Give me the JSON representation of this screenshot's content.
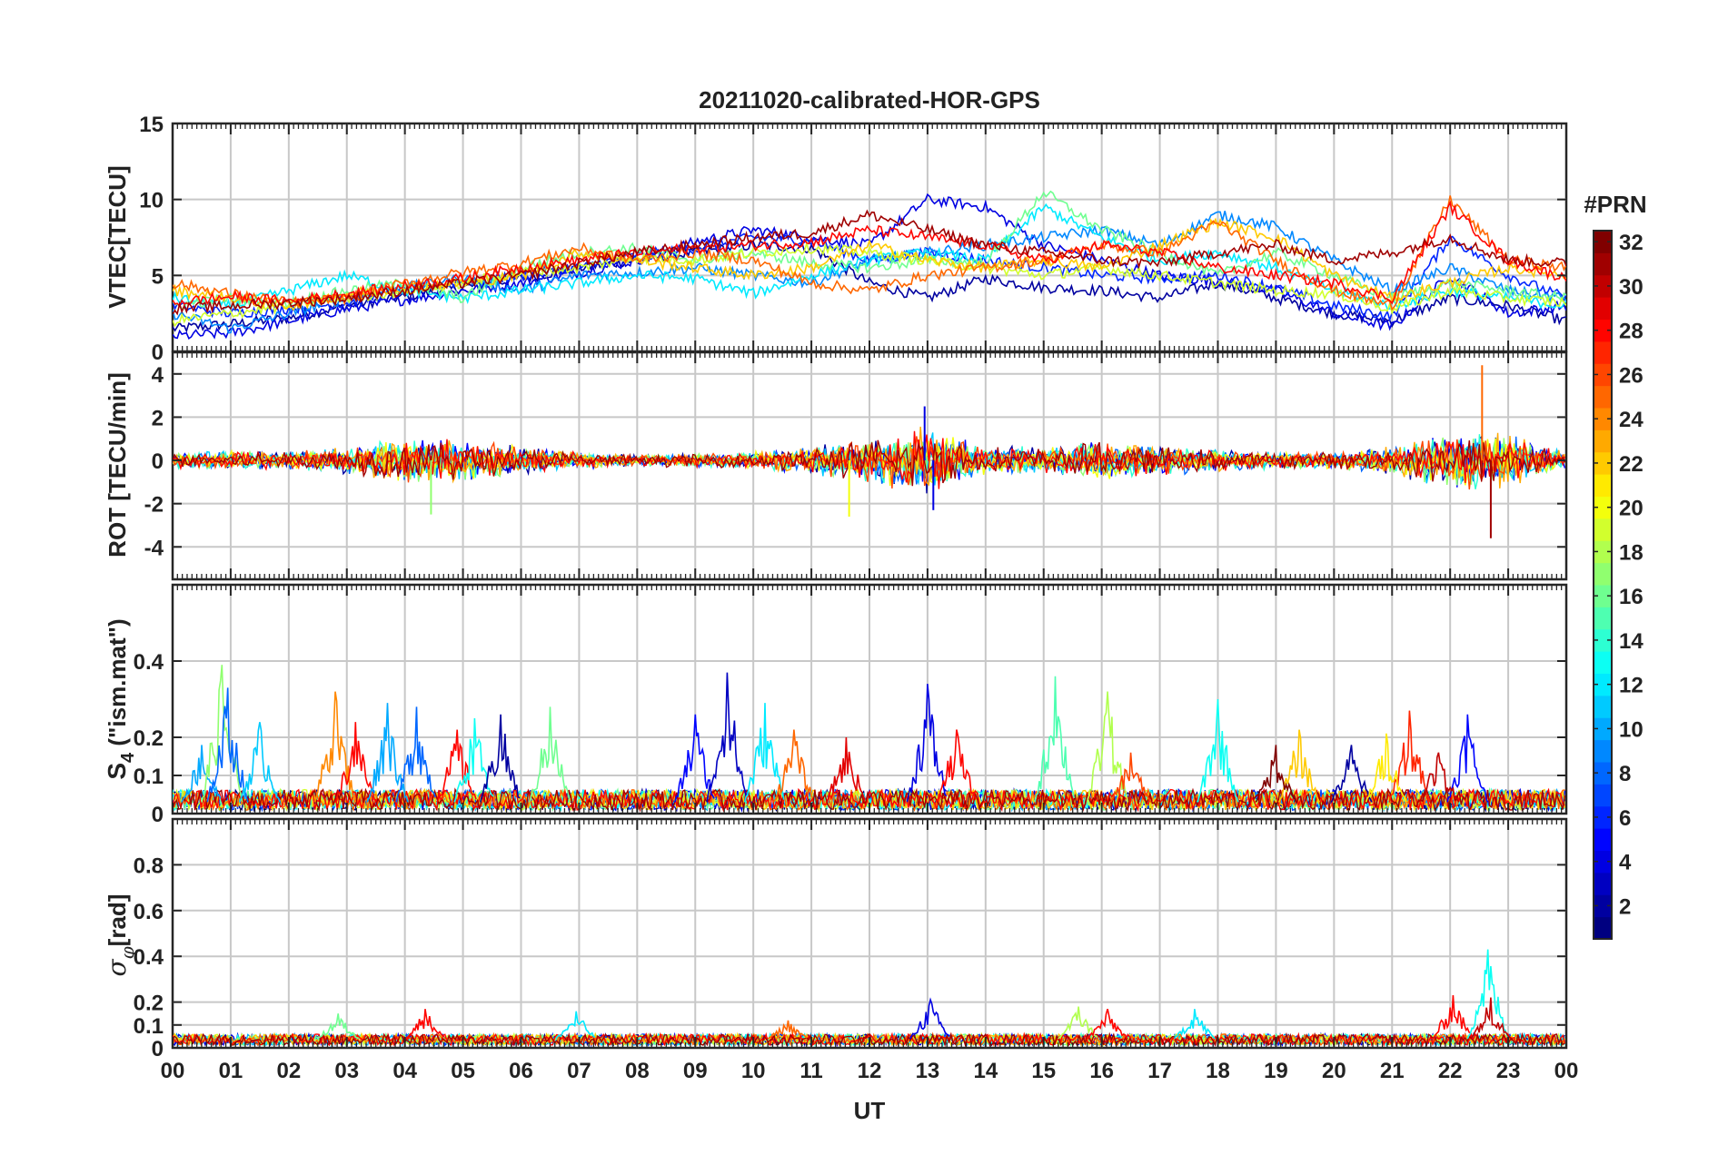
{
  "chart_data": {
    "type": "line",
    "title": "20211020-calibrated-HOR-GPS",
    "xlabel": "UT",
    "x_range": [
      0,
      24
    ],
    "x_ticks": [
      "00",
      "01",
      "02",
      "03",
      "04",
      "05",
      "06",
      "07",
      "08",
      "09",
      "10",
      "11",
      "12",
      "13",
      "14",
      "15",
      "16",
      "17",
      "18",
      "19",
      "20",
      "21",
      "22",
      "23",
      "00"
    ],
    "colorbar": {
      "label": "#PRN",
      "range": [
        1,
        32
      ],
      "ticks": [
        "2",
        "4",
        "6",
        "8",
        "10",
        "12",
        "14",
        "16",
        "18",
        "20",
        "22",
        "24",
        "26",
        "28",
        "30",
        "32"
      ],
      "colormap": "jet"
    },
    "panels": [
      {
        "name": "vtec",
        "ylabel": "VTEC[TECU]",
        "ylim": [
          0,
          15
        ],
        "yticks": [
          "0",
          "5",
          "10",
          "15"
        ],
        "tick_values": [
          0,
          5,
          10,
          15
        ],
        "series": [
          {
            "prn": 2,
            "x": [
              0,
              1,
              2,
              3,
              4,
              5,
              6,
              7,
              8,
              9,
              10,
              11,
              12,
              13,
              14,
              15,
              16,
              17,
              18,
              19,
              20,
              21,
              22,
              23,
              24
            ],
            "y": [
              1.5,
              1.8,
              2.2,
              3.0,
              3.6,
              4.2,
              4.8,
              5.5,
              6.0,
              6.5,
              7.0,
              6.8,
              4.5,
              3.5,
              4.8,
              4.2,
              4.0,
              3.5,
              4.5,
              3.5,
              2.5,
              2.0,
              3.5,
              3.0,
              2.0
            ]
          },
          {
            "prn": 4,
            "x": [
              0,
              1,
              2,
              3,
              4,
              5,
              6,
              7,
              8,
              9,
              10,
              11,
              12,
              13,
              14,
              15,
              16,
              17,
              18,
              19,
              20,
              21,
              22,
              23,
              24
            ],
            "y": [
              1.0,
              1.2,
              2.0,
              2.8,
              3.4,
              4.0,
              4.5,
              5.2,
              6.0,
              7.2,
              8.0,
              7.5,
              7.0,
              10.0,
              9.5,
              7.0,
              6.0,
              5.0,
              4.6,
              4.0,
              2.5,
              1.6,
              5.0,
              2.5,
              3.0
            ]
          },
          {
            "prn": 6,
            "x": [
              0,
              1,
              2,
              3,
              4,
              5,
              6,
              7,
              8,
              9,
              10,
              11,
              12,
              13,
              14,
              15,
              16,
              17,
              18,
              19,
              20,
              21,
              22,
              23,
              24
            ],
            "y": [
              3.0,
              2.5,
              2.8,
              3.2,
              4.0,
              4.6,
              5.0,
              5.5,
              6.3,
              6.8,
              7.5,
              7.3,
              6.0,
              6.5,
              6.0,
              5.5,
              5.0,
              4.8,
              5.0,
              4.2,
              3.0,
              2.3,
              7.5,
              5.0,
              3.5
            ]
          },
          {
            "prn": 9,
            "x": [
              0,
              1,
              2,
              3,
              4,
              5,
              6,
              7,
              8,
              9,
              10,
              11,
              12,
              13,
              14,
              15,
              16,
              17,
              18,
              19,
              20,
              21,
              22,
              23,
              24
            ],
            "y": [
              2.5,
              1.5,
              2.5,
              3.5,
              4.2,
              4.8,
              4.0,
              5.0,
              5.2,
              5.5,
              5.0,
              4.5,
              6.0,
              6.5,
              7.0,
              7.5,
              8.0,
              7.0,
              9.0,
              8.2,
              6.0,
              4.0,
              5.5,
              4.0,
              3.5
            ]
          },
          {
            "prn": 12,
            "x": [
              0,
              1,
              2,
              3,
              4,
              5,
              6,
              7,
              8,
              9,
              10,
              11,
              12,
              13,
              14,
              15,
              16,
              17,
              18,
              19,
              20,
              21,
              22,
              23,
              24
            ],
            "y": [
              3.5,
              3.0,
              4.0,
              5.0,
              4.0,
              3.5,
              4.0,
              4.5,
              5.0,
              4.8,
              3.8,
              5.0,
              6.0,
              6.5,
              6.0,
              9.5,
              7.5,
              6.0,
              6.5,
              5.5,
              4.0,
              3.0,
              4.0,
              3.5,
              3.0
            ]
          },
          {
            "prn": 16,
            "x": [
              0,
              1,
              2,
              3,
              4,
              5,
              6,
              7,
              8,
              9,
              10,
              11,
              12,
              13,
              14,
              15,
              16,
              17,
              18,
              19,
              20,
              21,
              22,
              23,
              24
            ],
            "y": [
              3.0,
              3.5,
              3.2,
              4.0,
              4.5,
              3.5,
              5.5,
              6.5,
              6.8,
              6.0,
              6.5,
              5.8,
              5.5,
              6.0,
              5.8,
              10.5,
              8.0,
              6.5,
              5.0,
              6.5,
              5.0,
              3.5,
              4.5,
              4.0,
              3.5
            ]
          },
          {
            "prn": 19,
            "x": [
              0,
              1,
              2,
              3,
              4,
              5,
              6,
              7,
              8,
              9,
              10,
              11,
              12,
              13,
              14,
              15,
              16,
              17,
              18,
              19,
              20,
              21,
              22,
              23,
              24
            ],
            "y": [
              2.0,
              2.5,
              3.0,
              3.5,
              4.0,
              4.5,
              5.2,
              5.5,
              6.2,
              6.0,
              6.5,
              6.8,
              6.5,
              6.0,
              5.5,
              5.0,
              5.5,
              5.0,
              4.5,
              4.0,
              3.8,
              2.8,
              4.0,
              3.5,
              3.2
            ]
          },
          {
            "prn": 22,
            "x": [
              0,
              1,
              2,
              3,
              4,
              5,
              6,
              7,
              8,
              9,
              10,
              11,
              12,
              13,
              14,
              15,
              16,
              17,
              18,
              19,
              20,
              21,
              22,
              23,
              24
            ],
            "y": [
              4.0,
              3.5,
              3.0,
              3.8,
              4.2,
              4.5,
              5.0,
              6.5,
              6.0,
              5.5,
              5.0,
              5.5,
              7.0,
              6.0,
              5.5,
              6.0,
              5.5,
              7.0,
              8.5,
              7.5,
              5.0,
              3.5,
              4.5,
              5.5,
              5.0
            ]
          },
          {
            "prn": 25,
            "x": [
              0,
              1,
              2,
              3,
              4,
              5,
              6,
              7,
              8,
              9,
              10,
              11,
              12,
              13,
              14,
              15,
              16,
              17,
              18,
              19,
              20,
              21,
              22,
              23,
              24
            ],
            "y": [
              4.5,
              3.8,
              3.2,
              3.5,
              4.5,
              5.2,
              5.8,
              6.8,
              6.0,
              6.5,
              6.0,
              4.5,
              4.0,
              5.0,
              5.5,
              6.0,
              7.0,
              6.5,
              8.5,
              6.0,
              4.0,
              3.0,
              10.0,
              6.0,
              5.5
            ]
          },
          {
            "prn": 28,
            "x": [
              0,
              1,
              2,
              3,
              4,
              5,
              6,
              7,
              8,
              9,
              10,
              11,
              12,
              13,
              14,
              15,
              16,
              17,
              18,
              19,
              20,
              21,
              22,
              23,
              24
            ],
            "y": [
              3.2,
              3.6,
              3.3,
              3.8,
              4.3,
              4.8,
              5.5,
              6.0,
              6.5,
              6.8,
              7.0,
              7.2,
              8.0,
              7.5,
              7.0,
              6.0,
              7.0,
              6.5,
              5.5,
              5.0,
              4.5,
              3.5,
              9.5,
              6.0,
              4.8
            ]
          },
          {
            "prn": 31,
            "x": [
              0,
              1,
              2,
              3,
              4,
              5,
              6,
              7,
              8,
              9,
              10,
              11,
              12,
              13,
              14,
              15,
              16,
              17,
              18,
              19,
              20,
              21,
              22,
              23,
              24
            ],
            "y": [
              2.8,
              3.0,
              3.2,
              3.5,
              4.0,
              4.5,
              5.0,
              5.8,
              6.5,
              7.0,
              7.5,
              7.8,
              9.0,
              8.0,
              7.0,
              6.5,
              6.0,
              5.8,
              6.5,
              7.0,
              6.0,
              6.5,
              7.5,
              6.0,
              5.8
            ]
          }
        ]
      },
      {
        "name": "rot",
        "ylabel": "ROT [TECU/min]",
        "ylim": [
          -5.5,
          5
        ],
        "yticks": [
          "-4",
          "-2",
          "0",
          "2",
          "4"
        ],
        "tick_values": [
          -4,
          -2,
          0,
          2,
          4
        ],
        "envelope_x": [
          0,
          1,
          2,
          3,
          4,
          5,
          6,
          7,
          8,
          9,
          10,
          11,
          12,
          13,
          14,
          15,
          16,
          17,
          18,
          19,
          20,
          21,
          22,
          23,
          24
        ],
        "envelope_amplitude": [
          0.6,
          0.7,
          0.6,
          1.0,
          1.6,
          1.5,
          1.0,
          0.6,
          0.4,
          0.5,
          0.6,
          1.0,
          1.6,
          2.4,
          1.0,
          1.0,
          1.4,
          1.0,
          0.8,
          0.6,
          0.6,
          1.0,
          2.0,
          2.0,
          0.6
        ],
        "peaks": [
          {
            "prn": 4,
            "x": 12.95,
            "y": 2.5
          },
          {
            "prn": 4,
            "x": 13.1,
            "y": -2.3
          },
          {
            "prn": 17,
            "x": 4.45,
            "y": -2.5
          },
          {
            "prn": 20,
            "x": 11.65,
            "y": -2.6
          },
          {
            "prn": 25,
            "x": 22.55,
            "y": 4.4
          },
          {
            "prn": 31,
            "x": 22.7,
            "y": -3.6
          }
        ]
      },
      {
        "name": "s4",
        "ylabel": "S4 (\"ism.mat\")",
        "ylabel_main": "S",
        "ylabel_sub": "4",
        "ylabel_rest": " (\"ism.mat\")",
        "ylim": [
          0,
          0.6
        ],
        "yticks": [
          "0",
          "0.1",
          "0.2",
          "0.4"
        ],
        "tick_values": [
          0,
          0.1,
          0.2,
          0.4
        ],
        "baseline": 0.03,
        "peaks": [
          {
            "prn": 10,
            "x": 0.5,
            "y": 0.18
          },
          {
            "prn": 17,
            "x": 0.85,
            "y": 0.39
          },
          {
            "prn": 8,
            "x": 0.95,
            "y": 0.33
          },
          {
            "prn": 11,
            "x": 1.5,
            "y": 0.24
          },
          {
            "prn": 24,
            "x": 2.8,
            "y": 0.32
          },
          {
            "prn": 28,
            "x": 3.15,
            "y": 0.24
          },
          {
            "prn": 10,
            "x": 3.7,
            "y": 0.29
          },
          {
            "prn": 8,
            "x": 4.2,
            "y": 0.28
          },
          {
            "prn": 28,
            "x": 4.9,
            "y": 0.22
          },
          {
            "prn": 13,
            "x": 5.2,
            "y": 0.25
          },
          {
            "prn": 2,
            "x": 5.65,
            "y": 0.26
          },
          {
            "prn": 16,
            "x": 6.5,
            "y": 0.28
          },
          {
            "prn": 5,
            "x": 9.0,
            "y": 0.26
          },
          {
            "prn": 3,
            "x": 9.55,
            "y": 0.37
          },
          {
            "prn": 12,
            "x": 10.2,
            "y": 0.29
          },
          {
            "prn": 25,
            "x": 10.7,
            "y": 0.22
          },
          {
            "prn": 29,
            "x": 11.6,
            "y": 0.2
          },
          {
            "prn": 4,
            "x": 13.0,
            "y": 0.34
          },
          {
            "prn": 28,
            "x": 13.5,
            "y": 0.22
          },
          {
            "prn": 15,
            "x": 15.2,
            "y": 0.36
          },
          {
            "prn": 18,
            "x": 16.1,
            "y": 0.32
          },
          {
            "prn": 26,
            "x": 16.5,
            "y": 0.16
          },
          {
            "prn": 13,
            "x": 18.0,
            "y": 0.3
          },
          {
            "prn": 22,
            "x": 19.4,
            "y": 0.22
          },
          {
            "prn": 32,
            "x": 19.0,
            "y": 0.18
          },
          {
            "prn": 2,
            "x": 20.3,
            "y": 0.18
          },
          {
            "prn": 27,
            "x": 21.3,
            "y": 0.27
          },
          {
            "prn": 21,
            "x": 20.9,
            "y": 0.21
          },
          {
            "prn": 5,
            "x": 22.3,
            "y": 0.26
          },
          {
            "prn": 30,
            "x": 21.8,
            "y": 0.16
          }
        ]
      },
      {
        "name": "sigma_phi",
        "ylabel": "σφ[rad]",
        "ylabel_main": "σ",
        "ylabel_sub": "φ",
        "ylabel_rest": "[rad]",
        "ylim": [
          0,
          1
        ],
        "yticks": [
          "0",
          "0.1",
          "0.2",
          "0.4",
          "0.6",
          "0.8"
        ],
        "tick_values": [
          0,
          0.1,
          0.2,
          0.4,
          0.6,
          0.8
        ],
        "baseline": 0.04,
        "peaks": [
          {
            "prn": 16,
            "x": 2.85,
            "y": 0.15
          },
          {
            "prn": 28,
            "x": 4.35,
            "y": 0.17
          },
          {
            "prn": 12,
            "x": 6.95,
            "y": 0.16
          },
          {
            "prn": 25,
            "x": 10.6,
            "y": 0.12
          },
          {
            "prn": 4,
            "x": 13.05,
            "y": 0.21
          },
          {
            "prn": 18,
            "x": 15.6,
            "y": 0.18
          },
          {
            "prn": 28,
            "x": 16.1,
            "y": 0.17
          },
          {
            "prn": 12,
            "x": 17.6,
            "y": 0.17
          },
          {
            "prn": 28,
            "x": 22.05,
            "y": 0.23
          },
          {
            "prn": 13,
            "x": 22.65,
            "y": 0.43
          },
          {
            "prn": 30,
            "x": 22.7,
            "y": 0.22
          }
        ]
      }
    ]
  }
}
